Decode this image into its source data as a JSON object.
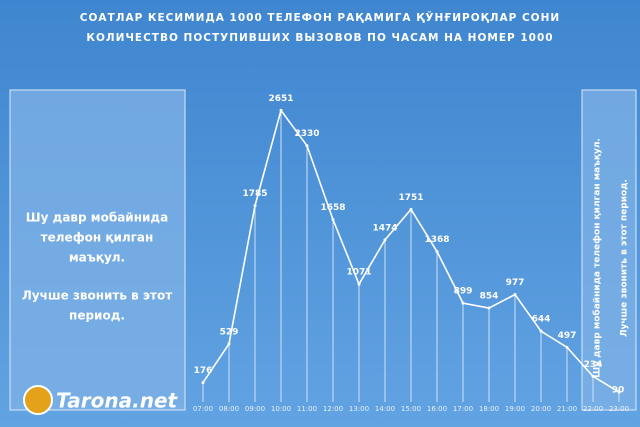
{
  "chart_data": {
    "type": "line",
    "title": "СОАТЛАР КЕСИМИДА 1000 ТЕЛЕФОН РАҚАМИГА ҚЎНҒИРОҚЛАР СОНИ",
    "subtitle": "КОЛИЧЕСТВО ПОСТУПИВШИХ ВЫЗОВОВ ПО ЧАСАМ НА НОМЕР 1000",
    "categories": [
      "07:00",
      "08:00",
      "09:00",
      "10:00",
      "11:00",
      "12:00",
      "13:00",
      "14:00",
      "15:00",
      "16:00",
      "17:00",
      "18:00",
      "19:00",
      "20:00",
      "21:00",
      "22:00",
      "23:00"
    ],
    "values": [
      176,
      529,
      1785,
      2651,
      2330,
      1658,
      1071,
      1474,
      1751,
      1368,
      899,
      854,
      977,
      644,
      497,
      234,
      90
    ],
    "color": "#ffffff"
  },
  "left_note": [
    "Шу давр мобайнида",
    "телефон қилган",
    "маъқул.",
    "Лучше звонить в этот",
    "период."
  ],
  "right_note": [
    "Шу давр мобайнида телефон қилган маъқул.",
    "Лучше звонить в этот период."
  ],
  "logo": "Tarona.net"
}
